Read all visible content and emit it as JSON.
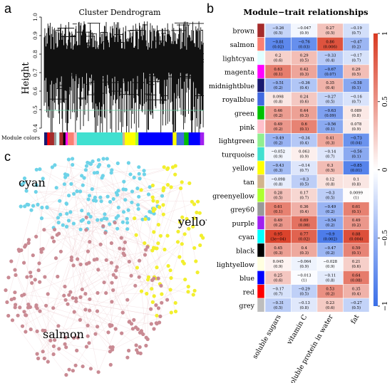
{
  "figure": {
    "panels": {
      "a": {
        "letter": "a",
        "title": "Cluster Dendrogram",
        "ylabel": "Height",
        "yticks": [
          "0.4",
          "0.5",
          "0.6",
          "0.7",
          "0.8",
          "0.9",
          "1.0"
        ],
        "module_colors_label": "Module colors"
      },
      "b": {
        "letter": "b",
        "title": "Module−trait relationships"
      },
      "c": {
        "letter": "c",
        "labels": {
          "cyan": "cyan",
          "yellow": "yellow",
          "salmon": "salmon"
        }
      }
    }
  },
  "chart_data": [
    {
      "type": "heatmap",
      "title": "Module−trait relationships",
      "traits": [
        "soluble sugars",
        "vitamin C",
        "soluble protein in water",
        "fat"
      ],
      "modules": [
        {
          "name": "brown",
          "color": "#a52a2a",
          "cells": [
            [
              "−0.26",
              "(0.5)"
            ],
            [
              "−0.047",
              "(0.9)"
            ],
            [
              "0.27",
              "(0.5)"
            ],
            [
              "−0.19",
              "(0.7)"
            ]
          ],
          "values": [
            -0.26,
            -0.047,
            0.27,
            -0.19
          ]
        },
        {
          "name": "salmon",
          "color": "#fa8072",
          "cells": [
            [
              "−0.81",
              "(0.02)"
            ],
            [
              "−0.76",
              "(0.03)"
            ],
            [
              "0.86",
              "(0.006)"
            ],
            [
              "−0.47",
              "(0.2)"
            ]
          ],
          "values": [
            -0.81,
            -0.76,
            0.86,
            -0.47
          ]
        },
        {
          "name": "lightcyan",
          "color": "#e0ffff",
          "cells": [
            [
              "0.2",
              "(0.6)"
            ],
            [
              "0.29",
              "(0.5)"
            ],
            [
              "−0.33",
              "(0.4)"
            ],
            [
              "−0.17",
              "(0.7)"
            ]
          ],
          "values": [
            0.2,
            0.29,
            -0.33,
            -0.17
          ]
        },
        {
          "name": "magenta",
          "color": "#ff00ff",
          "cells": [
            [
              "0.63",
              "(0.1)"
            ],
            [
              "0.42",
              "(0.3)"
            ],
            [
              "−0.67",
              "(0.07)"
            ],
            [
              "0.29",
              "(0.5)"
            ]
          ],
          "values": [
            0.63,
            0.42,
            -0.67,
            0.29
          ]
        },
        {
          "name": "midnightblue",
          "color": "#191970",
          "cells": [
            [
              "−0.51",
              "(0.2)"
            ],
            [
              "−0.36",
              "(0.4)"
            ],
            [
              "0.35",
              "(0.4)"
            ],
            [
              "−0.58",
              "(0.1)"
            ]
          ],
          "values": [
            -0.51,
            -0.36,
            0.35,
            -0.58
          ]
        },
        {
          "name": "royalblue",
          "color": "#4169e1",
          "cells": [
            [
              "0.098",
              "(0.8)"
            ],
            [
              "0.24",
              "(0.6)"
            ],
            [
              "−0.27",
              "(0.5)"
            ],
            [
              "−0.16",
              "(0.7)"
            ]
          ],
          "values": [
            0.098,
            0.24,
            -0.27,
            -0.16
          ]
        },
        {
          "name": "green",
          "color": "#00c000",
          "cells": [
            [
              "0.46",
              "(0.2)"
            ],
            [
              "0.44",
              "(0.3)"
            ],
            [
              "−0.63",
              "(0.09)"
            ],
            [
              "0.089",
              "(0.8)"
            ]
          ],
          "values": [
            0.46,
            0.44,
            -0.63,
            0.089
          ]
        },
        {
          "name": "pink",
          "color": "#ffc0cb",
          "cells": [
            [
              "0.49",
              "(0.2)"
            ],
            [
              "0.6",
              "(0.1)"
            ],
            [
              "−0.56",
              "(0.1)"
            ],
            [
              "0.078",
              "(0.9)"
            ]
          ],
          "values": [
            0.49,
            0.6,
            -0.56,
            0.078
          ]
        },
        {
          "name": "lightgreen",
          "color": "#90ee90",
          "cells": [
            [
              "−0.49",
              "(0.2)"
            ],
            [
              "−0.34",
              "(0.4)"
            ],
            [
              "0.41",
              "(0.3)"
            ],
            [
              "−0.73",
              "(0.04)"
            ]
          ],
          "values": [
            -0.49,
            -0.34,
            0.41,
            -0.73
          ]
        },
        {
          "name": "turquoise",
          "color": "#40e0d0",
          "cells": [
            [
              "−0.052",
              "(0.9)"
            ],
            [
              "0.063",
              "(0.9)"
            ],
            [
              "−0.14",
              "(0.7)"
            ],
            [
              "−0.56",
              "(0.1)"
            ]
          ],
          "values": [
            -0.052,
            0.063,
            -0.14,
            -0.56
          ]
        },
        {
          "name": "yellow",
          "color": "#ffff00",
          "cells": [
            [
              "−0.43",
              "(0.3)"
            ],
            [
              "−0.14",
              "(0.7)"
            ],
            [
              "0.3",
              "(0.5)"
            ],
            [
              "−0.85",
              "(0.01)"
            ]
          ],
          "values": [
            -0.43,
            -0.14,
            0.3,
            -0.85
          ]
        },
        {
          "name": "tan",
          "color": "#d2b48c",
          "cells": [
            [
              "−0.098",
              "(0.8)"
            ],
            [
              "−0.3",
              "(0.5)"
            ],
            [
              "0.12",
              "(0.8)"
            ],
            [
              "0.1",
              "(0.8)"
            ]
          ],
          "values": [
            -0.098,
            -0.3,
            0.12,
            0.1
          ]
        },
        {
          "name": "greenyellow",
          "color": "#adff2f",
          "cells": [
            [
              "0.28",
              "(0.5)"
            ],
            [
              "0.17",
              "(0.7)"
            ],
            [
              "−0.3",
              "(0.5)"
            ],
            [
              "0.0099",
              "(1)"
            ]
          ],
          "values": [
            0.28,
            0.17,
            -0.3,
            0.0099
          ]
        },
        {
          "name": "grey60",
          "color": "#999999",
          "cells": [
            [
              "0.61",
              "(0.1)"
            ],
            [
              "0.36",
              "(0.4)"
            ],
            [
              "−0.49",
              "(0.2)"
            ],
            [
              "0.61",
              "(0.1)"
            ]
          ],
          "values": [
            0.61,
            0.36,
            -0.49,
            0.61
          ]
        },
        {
          "name": "purple",
          "color": "#a020f0",
          "cells": [
            [
              "0.49",
              "(0.2)"
            ],
            [
              "0.69",
              "(0.06)"
            ],
            [
              "−0.54",
              "(0.2)"
            ],
            [
              "0.49",
              "(0.2)"
            ]
          ],
          "values": [
            0.49,
            0.69,
            -0.54,
            0.49
          ]
        },
        {
          "name": "cyan",
          "color": "#00ffff",
          "cells": [
            [
              "0.95",
              "(3e−04)"
            ],
            [
              "0.77",
              "(0.02)"
            ],
            [
              "−0.9",
              "(0.002)"
            ],
            [
              "0.88",
              "(0.004)"
            ]
          ],
          "values": [
            0.95,
            0.77,
            -0.9,
            0.88
          ]
        },
        {
          "name": "black",
          "color": "#000000",
          "cells": [
            [
              "0.45",
              "(0.3)"
            ],
            [
              "0.4",
              "(0.3)"
            ],
            [
              "−0.47",
              "(0.2)"
            ],
            [
              "0.59",
              "(0.1)"
            ]
          ],
          "values": [
            0.45,
            0.4,
            -0.47,
            0.59
          ]
        },
        {
          "name": "lightyellow",
          "color": "#ffffe0",
          "cells": [
            [
              "0.045",
              "(0.9)"
            ],
            [
              "−0.064",
              "(0.9)"
            ],
            [
              "−0.028",
              "(0.9)"
            ],
            [
              "0.21",
              "(0.6)"
            ]
          ],
          "values": [
            0.045,
            -0.064,
            -0.028,
            0.21
          ]
        },
        {
          "name": "blue",
          "color": "#0000ff",
          "cells": [
            [
              "0.25",
              "(0.6)"
            ],
            [
              "−0.013",
              "(1)"
            ],
            [
              "−0.11",
              "(0.8)"
            ],
            [
              "0.64",
              "(0.08)"
            ]
          ],
          "values": [
            0.25,
            -0.013,
            -0.11,
            0.64
          ]
        },
        {
          "name": "red",
          "color": "#ff0000",
          "cells": [
            [
              "−0.17",
              "(0.7)"
            ],
            [
              "−0.29",
              "(0.5)"
            ],
            [
              "0.53",
              "(0.2)"
            ],
            [
              "0.35",
              "(0.4)"
            ]
          ],
          "values": [
            -0.17,
            -0.29,
            0.53,
            0.35
          ]
        },
        {
          "name": "grey",
          "color": "#bebebe",
          "cells": [
            [
              "−0.31",
              "(0.5)"
            ],
            [
              "−0.13",
              "(0.8)"
            ],
            [
              "0.23",
              "(0.6)"
            ],
            [
              "−0.27",
              "(0.5)"
            ]
          ],
          "values": [
            -0.31,
            -0.13,
            0.23,
            -0.27
          ]
        }
      ],
      "colorbar": {
        "range": [
          -1,
          1
        ],
        "ticks": [
          "1",
          "0.5",
          "0",
          "−0.5",
          "−1"
        ],
        "colors": {
          "low": "#3b6fe8",
          "mid": "#ffffff",
          "high": "#d93a22"
        }
      }
    }
  ]
}
